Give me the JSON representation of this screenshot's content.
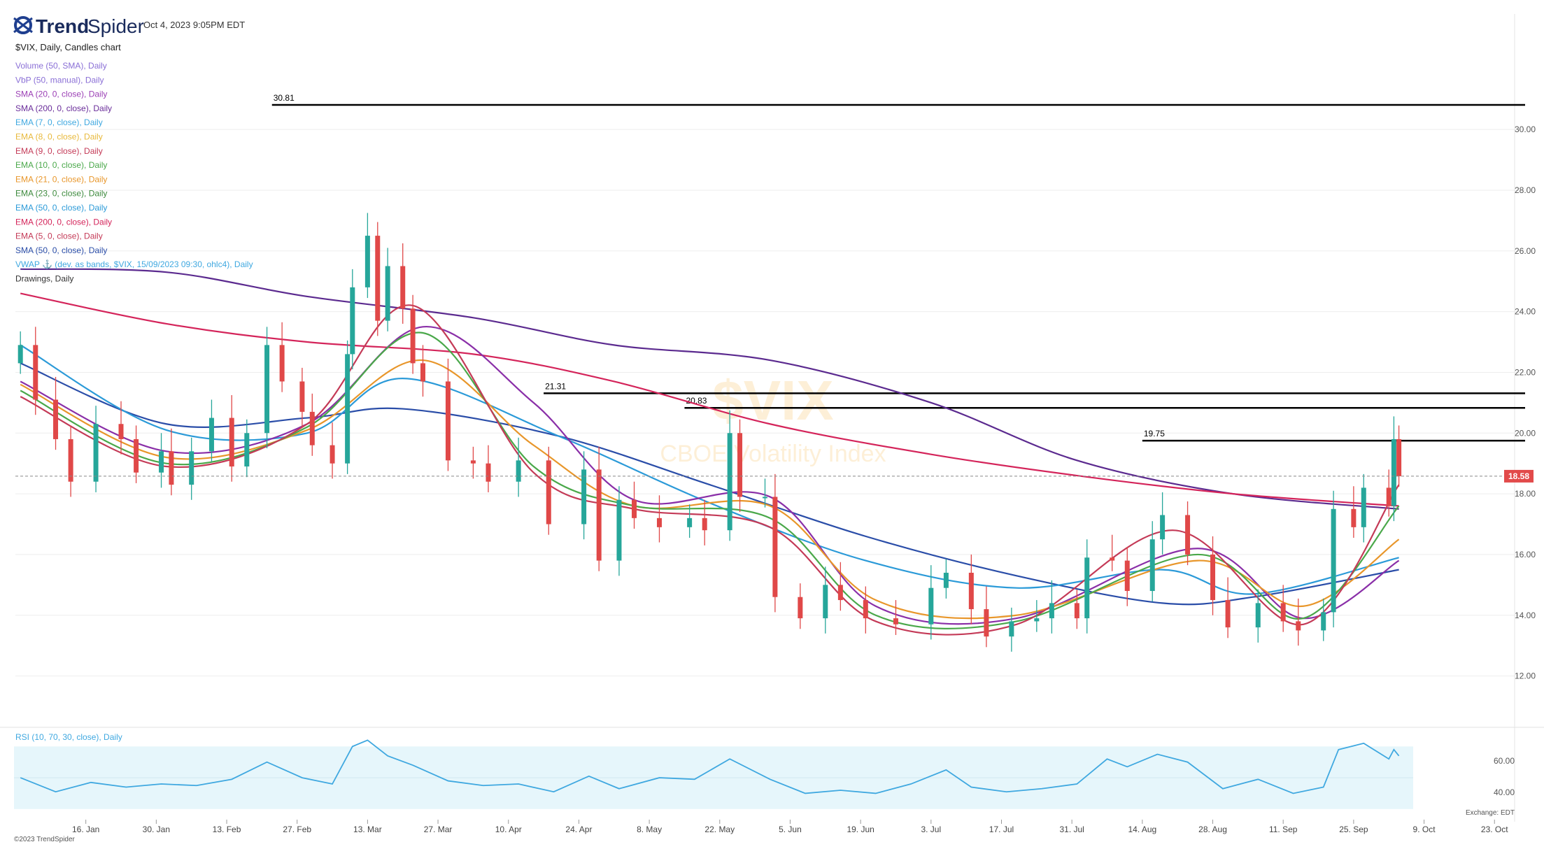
{
  "header": {
    "logo_trend": "Trend",
    "logo_spider": "Spider",
    "timestamp": "Oct 4, 2023 9:05PM EDT",
    "chart_title": "$VIX, Daily, Candles chart"
  },
  "indicator_legend": [
    {
      "label": "Volume (50, SMA), Daily",
      "color": "#8a6fd6"
    },
    {
      "label": "VbP (50, manual), Daily",
      "color": "#8a6fd6"
    },
    {
      "label": "SMA (20, 0, close), Daily",
      "color": "#9b3fb5"
    },
    {
      "label": "SMA (200, 0, close), Daily",
      "color": "#6a2d9a"
    },
    {
      "label": "EMA (7, 0, close), Daily",
      "color": "#3fa8e0"
    },
    {
      "label": "EMA (8, 0, close), Daily",
      "color": "#e8b93c"
    },
    {
      "label": "EMA (9, 0, close), Daily",
      "color": "#c43a57"
    },
    {
      "label": "EMA (10, 0, close), Daily",
      "color": "#4aa84a"
    },
    {
      "label": "EMA (21, 0, close), Daily",
      "color": "#e8962a"
    },
    {
      "label": "EMA (23, 0, close), Daily",
      "color": "#3d8a3d"
    },
    {
      "label": "EMA (50, 0, close), Daily",
      "color": "#2b9ad8"
    },
    {
      "label": "EMA (200, 0, close), Daily",
      "color": "#d4245a"
    },
    {
      "label": "EMA (5, 0, close), Daily",
      "color": "#c43a57"
    },
    {
      "label": "SMA (50, 0, close), Daily",
      "color": "#2a4da8"
    },
    {
      "label": "VWAP ⚓ (dev. as bands, $VIX, 15/09/2023 09:30, ohlc4), Daily",
      "color": "#3fa8e0"
    },
    {
      "label": "Drawings, Daily",
      "color": "#333333"
    }
  ],
  "watermark": {
    "symbol": "$VIX",
    "name": "CBOE Volatility Index"
  },
  "footer": {
    "copyright": "©2023 TrendSpider",
    "exchange": "Exchange: EDT"
  },
  "rsi": {
    "label": "RSI (10, 70, 30, close), Daily",
    "ticks": [
      "60.00",
      "40.00"
    ]
  },
  "chart_data": {
    "type": "candlestick",
    "symbol": "$VIX",
    "interval": "Daily",
    "y_range": [
      11.0,
      31.5
    ],
    "y_ticks": [
      12,
      14,
      16,
      18,
      20,
      22,
      24,
      26,
      28,
      30
    ],
    "y_tick_labels": [
      "12.00",
      "14.00",
      "16.00",
      "18.00",
      "20.00",
      "22.00",
      "24.00",
      "26.00",
      "28.00",
      "30.00"
    ],
    "x_tick_labels": [
      "16. Jan",
      "30. Jan",
      "13. Feb",
      "27. Feb",
      "13. Mar",
      "27. Mar",
      "10. Apr",
      "24. Apr",
      "8. May",
      "22. May",
      "5. Jun",
      "19. Jun",
      "3. Jul",
      "17. Jul",
      "31. Jul",
      "14. Aug",
      "28. Aug",
      "11. Sep",
      "25. Sep",
      "9. Oct",
      "23. Oct"
    ],
    "last_price": 18.58,
    "last_price_label": "18.58",
    "horizontal_levels": [
      {
        "value": 30.81,
        "label": "30.81",
        "from_date": "2023-02-22"
      },
      {
        "value": 21.31,
        "label": "21.31",
        "from_date": "2023-04-17"
      },
      {
        "value": 20.83,
        "label": "20.83",
        "from_date": "2023-05-15"
      },
      {
        "value": 19.75,
        "label": "19.75",
        "from_date": "2023-08-14"
      }
    ],
    "closes": [
      {
        "d": "2023-01-03",
        "c": 22.9
      },
      {
        "d": "2023-01-06",
        "c": 21.1
      },
      {
        "d": "2023-01-10",
        "c": 19.8
      },
      {
        "d": "2023-01-13",
        "c": 18.4
      },
      {
        "d": "2023-01-18",
        "c": 20.3
      },
      {
        "d": "2023-01-23",
        "c": 19.8
      },
      {
        "d": "2023-01-26",
        "c": 18.7
      },
      {
        "d": "2023-01-31",
        "c": 19.4
      },
      {
        "d": "2023-02-02",
        "c": 18.3
      },
      {
        "d": "2023-02-06",
        "c": 19.4
      },
      {
        "d": "2023-02-10",
        "c": 20.5
      },
      {
        "d": "2023-02-14",
        "c": 18.9
      },
      {
        "d": "2023-02-17",
        "c": 20.0
      },
      {
        "d": "2023-02-21",
        "c": 22.9
      },
      {
        "d": "2023-02-24",
        "c": 21.7
      },
      {
        "d": "2023-02-28",
        "c": 20.7
      },
      {
        "d": "2023-03-02",
        "c": 19.6
      },
      {
        "d": "2023-03-06",
        "c": 19.0
      },
      {
        "d": "2023-03-09",
        "c": 22.6
      },
      {
        "d": "2023-03-10",
        "c": 24.8
      },
      {
        "d": "2023-03-13",
        "c": 26.5
      },
      {
        "d": "2023-03-15",
        "c": 23.7
      },
      {
        "d": "2023-03-17",
        "c": 25.5
      },
      {
        "d": "2023-03-20",
        "c": 24.1
      },
      {
        "d": "2023-03-22",
        "c": 22.3
      },
      {
        "d": "2023-03-24",
        "c": 21.7
      },
      {
        "d": "2023-03-29",
        "c": 19.1
      },
      {
        "d": "2023-04-03",
        "c": 19.0
      },
      {
        "d": "2023-04-06",
        "c": 18.4
      },
      {
        "d": "2023-04-12",
        "c": 19.1
      },
      {
        "d": "2023-04-18",
        "c": 17.0
      },
      {
        "d": "2023-04-25",
        "c": 18.8
      },
      {
        "d": "2023-04-28",
        "c": 15.8
      },
      {
        "d": "2023-05-02",
        "c": 17.8
      },
      {
        "d": "2023-05-05",
        "c": 17.2
      },
      {
        "d": "2023-05-10",
        "c": 16.9
      },
      {
        "d": "2023-05-16",
        "c": 17.2
      },
      {
        "d": "2023-05-19",
        "c": 16.8
      },
      {
        "d": "2023-05-24",
        "c": 20.0
      },
      {
        "d": "2023-05-26",
        "c": 17.9
      },
      {
        "d": "2023-05-31",
        "c": 17.9
      },
      {
        "d": "2023-06-02",
        "c": 14.6
      },
      {
        "d": "2023-06-07",
        "c": 13.9
      },
      {
        "d": "2023-06-12",
        "c": 15.0
      },
      {
        "d": "2023-06-15",
        "c": 14.5
      },
      {
        "d": "2023-06-20",
        "c": 13.9
      },
      {
        "d": "2023-06-26",
        "c": 13.7
      },
      {
        "d": "2023-07-03",
        "c": 14.9
      },
      {
        "d": "2023-07-06",
        "c": 15.4
      },
      {
        "d": "2023-07-11",
        "c": 14.2
      },
      {
        "d": "2023-07-14",
        "c": 13.3
      },
      {
        "d": "2023-07-19",
        "c": 13.8
      },
      {
        "d": "2023-07-24",
        "c": 13.9
      },
      {
        "d": "2023-07-27",
        "c": 14.4
      },
      {
        "d": "2023-08-01",
        "c": 13.9
      },
      {
        "d": "2023-08-03",
        "c": 15.9
      },
      {
        "d": "2023-08-08",
        "c": 15.8
      },
      {
        "d": "2023-08-11",
        "c": 14.8
      },
      {
        "d": "2023-08-16",
        "c": 16.5
      },
      {
        "d": "2023-08-18",
        "c": 17.3
      },
      {
        "d": "2023-08-23",
        "c": 16.0
      },
      {
        "d": "2023-08-28",
        "c": 14.5
      },
      {
        "d": "2023-08-31",
        "c": 13.6
      },
      {
        "d": "2023-09-06",
        "c": 14.4
      },
      {
        "d": "2023-09-11",
        "c": 13.8
      },
      {
        "d": "2023-09-14",
        "c": 13.5
      },
      {
        "d": "2023-09-19",
        "c": 14.1
      },
      {
        "d": "2023-09-21",
        "c": 17.5
      },
      {
        "d": "2023-09-25",
        "c": 16.9
      },
      {
        "d": "2023-09-27",
        "c": 18.2
      },
      {
        "d": "2023-10-02",
        "c": 17.6
      },
      {
        "d": "2023-10-03",
        "c": 19.8
      },
      {
        "d": "2023-10-04",
        "c": 18.58
      }
    ],
    "ma_lines": [
      {
        "label": "SMA 200",
        "color": "#5b2a8f",
        "points": [
          [
            "2023-01-03",
            25.4
          ],
          [
            "2023-02-01",
            25.3
          ],
          [
            "2023-03-01",
            24.5
          ],
          [
            "2023-04-03",
            23.8
          ],
          [
            "2023-05-01",
            22.9
          ],
          [
            "2023-06-01",
            22.4
          ],
          [
            "2023-07-03",
            21.0
          ],
          [
            "2023-08-01",
            19.1
          ],
          [
            "2023-09-01",
            18.0
          ],
          [
            "2023-10-04",
            17.5
          ]
        ]
      },
      {
        "label": "EMA 200",
        "color": "#d4245a",
        "points": [
          [
            "2023-01-03",
            24.6
          ],
          [
            "2023-02-01",
            23.6
          ],
          [
            "2023-03-01",
            23.0
          ],
          [
            "2023-04-03",
            22.6
          ],
          [
            "2023-05-01",
            21.7
          ],
          [
            "2023-06-01",
            20.3
          ],
          [
            "2023-07-03",
            19.3
          ],
          [
            "2023-08-01",
            18.6
          ],
          [
            "2023-09-01",
            18.0
          ],
          [
            "2023-10-04",
            17.6
          ]
        ]
      },
      {
        "label": "SMA 50",
        "color": "#2a4da8",
        "points": [
          [
            "2023-01-03",
            22.3
          ],
          [
            "2023-02-01",
            20.3
          ],
          [
            "2023-03-01",
            20.5
          ],
          [
            "2023-03-20",
            20.8
          ],
          [
            "2023-04-20",
            19.9
          ],
          [
            "2023-05-20",
            18.3
          ],
          [
            "2023-06-20",
            16.6
          ],
          [
            "2023-07-20",
            15.3
          ],
          [
            "2023-08-18",
            14.4
          ],
          [
            "2023-09-05",
            14.6
          ],
          [
            "2023-10-04",
            15.5
          ]
        ]
      },
      {
        "label": "EMA 50",
        "color": "#2b9ad8",
        "points": [
          [
            "2023-01-03",
            22.9
          ],
          [
            "2023-02-01",
            20.1
          ],
          [
            "2023-03-01",
            20.0
          ],
          [
            "2023-03-20",
            21.8
          ],
          [
            "2023-04-20",
            19.9
          ],
          [
            "2023-05-20",
            17.7
          ],
          [
            "2023-06-20",
            15.8
          ],
          [
            "2023-07-20",
            14.9
          ],
          [
            "2023-08-18",
            15.5
          ],
          [
            "2023-09-05",
            14.7
          ],
          [
            "2023-10-04",
            15.9
          ]
        ]
      },
      {
        "label": "SMA 20",
        "color": "#8a2fa8",
        "points": [
          [
            "2023-01-03",
            21.7
          ],
          [
            "2023-02-01",
            19.4
          ],
          [
            "2023-03-01",
            20.3
          ],
          [
            "2023-03-24",
            23.5
          ],
          [
            "2023-04-15",
            21.0
          ],
          [
            "2023-05-05",
            17.8
          ],
          [
            "2023-06-01",
            17.9
          ],
          [
            "2023-06-22",
            14.3
          ],
          [
            "2023-07-20",
            13.9
          ],
          [
            "2023-08-25",
            16.2
          ],
          [
            "2023-09-15",
            13.9
          ],
          [
            "2023-10-04",
            15.8
          ]
        ]
      },
      {
        "label": "EMA 21",
        "color": "#e8962a",
        "points": [
          [
            "2023-01-03",
            21.6
          ],
          [
            "2023-02-01",
            19.2
          ],
          [
            "2023-03-01",
            20.1
          ],
          [
            "2023-03-24",
            22.4
          ],
          [
            "2023-04-15",
            19.6
          ],
          [
            "2023-05-05",
            17.6
          ],
          [
            "2023-06-01",
            17.6
          ],
          [
            "2023-06-22",
            14.5
          ],
          [
            "2023-07-20",
            14.0
          ],
          [
            "2023-08-25",
            15.8
          ],
          [
            "2023-09-15",
            14.3
          ],
          [
            "2023-10-04",
            16.5
          ]
        ]
      },
      {
        "label": "EMA 10",
        "color": "#4aa84a",
        "points": [
          [
            "2023-01-03",
            21.4
          ],
          [
            "2023-02-01",
            19.0
          ],
          [
            "2023-03-01",
            20.2
          ],
          [
            "2023-03-24",
            23.3
          ],
          [
            "2023-04-15",
            18.9
          ],
          [
            "2023-05-05",
            17.6
          ],
          [
            "2023-06-01",
            17.2
          ],
          [
            "2023-06-22",
            14.0
          ],
          [
            "2023-07-20",
            13.8
          ],
          [
            "2023-08-25",
            16.0
          ],
          [
            "2023-09-15",
            13.9
          ],
          [
            "2023-10-04",
            17.6
          ]
        ]
      },
      {
        "label": "EMA 5",
        "color": "#c43a57",
        "points": [
          [
            "2023-01-03",
            21.2
          ],
          [
            "2023-02-01",
            18.9
          ],
          [
            "2023-03-01",
            20.3
          ],
          [
            "2023-03-22",
            24.2
          ],
          [
            "2023-04-15",
            18.7
          ],
          [
            "2023-05-05",
            17.5
          ],
          [
            "2023-06-01",
            16.9
          ],
          [
            "2023-06-22",
            13.8
          ],
          [
            "2023-07-20",
            13.7
          ],
          [
            "2023-08-20",
            16.8
          ],
          [
            "2023-09-15",
            13.7
          ],
          [
            "2023-10-04",
            18.3
          ]
        ]
      }
    ],
    "rsi": {
      "overbought": 70,
      "oversold": 30,
      "y_range": [
        25,
        80
      ],
      "points": [
        [
          "2023-01-03",
          50
        ],
        [
          "2023-01-10",
          41
        ],
        [
          "2023-01-17",
          47
        ],
        [
          "2023-01-24",
          44
        ],
        [
          "2023-01-31",
          46
        ],
        [
          "2023-02-07",
          45
        ],
        [
          "2023-02-14",
          49
        ],
        [
          "2023-02-21",
          60
        ],
        [
          "2023-02-28",
          50
        ],
        [
          "2023-03-06",
          46
        ],
        [
          "2023-03-10",
          70
        ],
        [
          "2023-03-13",
          74
        ],
        [
          "2023-03-17",
          64
        ],
        [
          "2023-03-22",
          58
        ],
        [
          "2023-03-29",
          48
        ],
        [
          "2023-04-05",
          45
        ],
        [
          "2023-04-12",
          46
        ],
        [
          "2023-04-19",
          41
        ],
        [
          "2023-04-26",
          51
        ],
        [
          "2023-05-02",
          43
        ],
        [
          "2023-05-10",
          50
        ],
        [
          "2023-05-17",
          49
        ],
        [
          "2023-05-24",
          62
        ],
        [
          "2023-06-01",
          49
        ],
        [
          "2023-06-08",
          40
        ],
        [
          "2023-06-15",
          42
        ],
        [
          "2023-06-22",
          40
        ],
        [
          "2023-06-29",
          46
        ],
        [
          "2023-07-06",
          55
        ],
        [
          "2023-07-11",
          44
        ],
        [
          "2023-07-18",
          41
        ],
        [
          "2023-07-25",
          43
        ],
        [
          "2023-08-01",
          46
        ],
        [
          "2023-08-07",
          62
        ],
        [
          "2023-08-11",
          57
        ],
        [
          "2023-08-17",
          65
        ],
        [
          "2023-08-23",
          60
        ],
        [
          "2023-08-30",
          43
        ],
        [
          "2023-09-06",
          49
        ],
        [
          "2023-09-13",
          40
        ],
        [
          "2023-09-19",
          44
        ],
        [
          "2023-09-22",
          68
        ],
        [
          "2023-09-27",
          72
        ],
        [
          "2023-10-02",
          62
        ],
        [
          "2023-10-03",
          68
        ],
        [
          "2023-10-04",
          64
        ]
      ]
    }
  }
}
